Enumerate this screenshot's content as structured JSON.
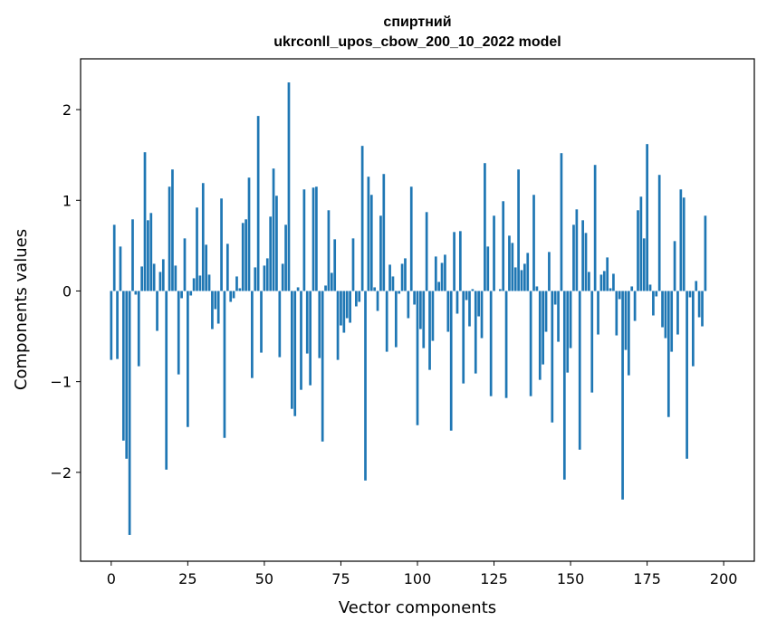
{
  "chart_data": {
    "type": "bar",
    "title": "спиртний",
    "subtitle": "ukrconll_upos_cbow_200_10_2022 model",
    "xlabel": "Vector components",
    "ylabel": "Components values",
    "xlim": [
      -10,
      210
    ],
    "ylim": [
      -2.98,
      2.56
    ],
    "xticks": [
      0,
      25,
      50,
      75,
      100,
      125,
      150,
      175,
      200
    ],
    "yticks": [
      -2,
      -1,
      0,
      1,
      2
    ],
    "ytick_labels": [
      "−2",
      "−1",
      "0",
      "1",
      "2"
    ],
    "grid": false,
    "bar_color": "#1f77b4",
    "values": [
      -0.76,
      0.73,
      -0.75,
      0.49,
      -1.65,
      -1.85,
      -2.69,
      0.79,
      -0.04,
      -0.83,
      0.27,
      1.53,
      0.78,
      0.86,
      0.3,
      -0.44,
      0.21,
      0.35,
      -1.97,
      1.15,
      1.34,
      0.28,
      -0.92,
      -0.08,
      0.58,
      -1.5,
      -0.05,
      0.14,
      0.92,
      0.17,
      1.19,
      0.51,
      0.18,
      -0.42,
      -0.2,
      -0.36,
      1.02,
      -1.62,
      0.52,
      -0.12,
      -0.08,
      0.16,
      0.03,
      0.75,
      0.79,
      1.25,
      -0.96,
      0.26,
      1.93,
      -0.68,
      0.28,
      0.36,
      0.82,
      1.35,
      1.05,
      -0.73,
      0.3,
      0.73,
      2.3,
      -1.3,
      -1.38,
      0.04,
      -1.09,
      1.12,
      -0.69,
      -1.04,
      1.14,
      1.15,
      -0.74,
      -1.66,
      0.06,
      0.89,
      0.2,
      0.57,
      -0.76,
      -0.38,
      -0.46,
      -0.3,
      -0.35,
      0.58,
      -0.17,
      -0.12,
      1.6,
      -2.09,
      1.26,
      1.06,
      0.04,
      -0.22,
      0.83,
      1.29,
      -0.67,
      0.29,
      0.16,
      -0.62,
      -0.03,
      0.3,
      0.36,
      -0.3,
      1.15,
      -0.15,
      -1.48,
      -0.42,
      -0.63,
      0.87,
      -0.87,
      -0.55,
      0.38,
      0.1,
      0.31,
      0.4,
      -0.45,
      -1.54,
      0.65,
      -0.25,
      0.66,
      -1.02,
      -0.1,
      -0.39,
      0.02,
      -0.91,
      -0.28,
      -0.52,
      1.41,
      0.49,
      -1.16,
      0.83,
      0.0,
      0.02,
      0.99,
      -1.18,
      0.61,
      0.53,
      0.26,
      1.34,
      0.23,
      0.3,
      0.42,
      -1.16,
      1.06,
      0.05,
      -0.98,
      -0.81,
      -0.45,
      0.43,
      -1.45,
      -0.15,
      -0.56,
      1.52,
      -2.08,
      -0.9,
      -0.63,
      0.73,
      0.9,
      -1.75,
      0.78,
      0.64,
      0.21,
      -1.12,
      1.39,
      -0.48,
      0.18,
      0.22,
      0.37,
      0.03,
      0.19,
      -0.49,
      -0.09,
      -2.3,
      -0.65,
      -0.93,
      0.05,
      -0.33,
      0.89,
      1.04,
      0.58,
      1.62,
      0.07,
      -0.27,
      -0.06,
      1.28,
      -0.4,
      -0.52,
      -1.39,
      -0.67,
      0.55,
      -0.48,
      1.12,
      1.03,
      -1.85,
      -0.07,
      -0.83,
      0.11,
      -0.29,
      -0.39,
      0.83
    ]
  }
}
